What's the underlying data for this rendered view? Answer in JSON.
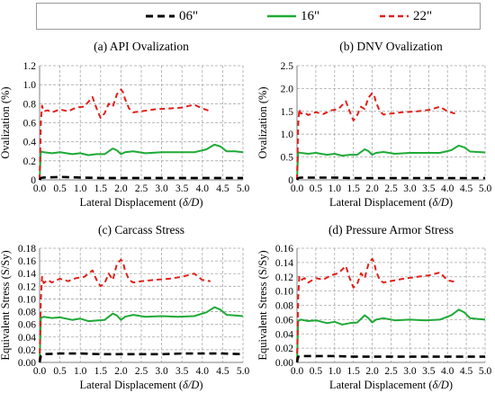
{
  "legend": [
    {
      "label": "06\"",
      "color": "#000000",
      "dash": "8,5"
    },
    {
      "label": "16\"",
      "color": "#1faa37",
      "dash": ""
    },
    {
      "label": "22\"",
      "color": "#e0211b",
      "dash": "6,4"
    }
  ],
  "chart_data": [
    {
      "type": "line",
      "title": "(a) API Ovalization",
      "xlabel": "Lateral Displacement (δ/D)",
      "ylabel": "Ovalization (%)",
      "xlim": [
        0,
        5
      ],
      "ylim": [
        0,
        1.2
      ],
      "xticks": [
        "0.0",
        "0.5",
        "1.0",
        "1.5",
        "2.0",
        "2.5",
        "3.0",
        "3.5",
        "4.0",
        "4.5",
        "5.0"
      ],
      "yticks": [
        "0",
        "0.2",
        "0.4",
        "0.6",
        "0.8",
        "1.0",
        "1.2"
      ],
      "grid": true,
      "series": [
        {
          "name": "06\"",
          "x": [
            0,
            0.03,
            0.1,
            0.5,
            1,
            1.5,
            2,
            2.5,
            3,
            3.5,
            4,
            4.5,
            5
          ],
          "y": [
            0,
            0.02,
            0.025,
            0.03,
            0.025,
            0.02,
            0.02,
            0.02,
            0.02,
            0.02,
            0.02,
            0.02,
            0.02
          ]
        },
        {
          "name": "16\"",
          "x": [
            0,
            0.03,
            0.1,
            0.3,
            0.5,
            0.8,
            1.0,
            1.2,
            1.4,
            1.6,
            1.8,
            1.9,
            2.0,
            2.1,
            2.3,
            2.6,
            3.0,
            3.4,
            3.8,
            4.1,
            4.3,
            4.45,
            4.6,
            4.8,
            5.0
          ],
          "y": [
            0,
            0.3,
            0.29,
            0.28,
            0.29,
            0.27,
            0.28,
            0.26,
            0.27,
            0.27,
            0.33,
            0.31,
            0.27,
            0.29,
            0.3,
            0.28,
            0.29,
            0.29,
            0.29,
            0.32,
            0.37,
            0.35,
            0.3,
            0.3,
            0.29
          ]
        },
        {
          "name": "22\"",
          "x": [
            0,
            0.03,
            0.06,
            0.1,
            0.2,
            0.3,
            0.5,
            0.7,
            0.9,
            1.1,
            1.3,
            1.4,
            1.5,
            1.6,
            1.7,
            1.8,
            1.9,
            2.0,
            2.05,
            2.1,
            2.2,
            2.3,
            2.5,
            2.8,
            3.2,
            3.5,
            3.8,
            4.0,
            4.2
          ],
          "y": [
            0,
            0.6,
            0.78,
            0.72,
            0.73,
            0.71,
            0.74,
            0.72,
            0.76,
            0.77,
            0.87,
            0.75,
            0.65,
            0.7,
            0.8,
            0.77,
            0.9,
            0.95,
            0.92,
            0.85,
            0.75,
            0.71,
            0.72,
            0.74,
            0.75,
            0.76,
            0.79,
            0.75,
            0.72
          ]
        }
      ]
    },
    {
      "type": "line",
      "title": "(b) DNV Ovalization",
      "xlabel": "Lateral Displacement (δ/D)",
      "ylabel": "Ovalization (%)",
      "xlim": [
        0,
        5
      ],
      "ylim": [
        0,
        2.5
      ],
      "xticks": [
        "0.0",
        "0.5",
        "1.0",
        "1.5",
        "2.0",
        "2.5",
        "3.0",
        "3.5",
        "4.0",
        "4.5",
        "5.0"
      ],
      "yticks": [
        "0",
        "0.5",
        "1.0",
        "1.5",
        "2.0",
        "2.5"
      ],
      "grid": true,
      "series": [
        {
          "name": "06\"",
          "x": [
            0,
            0.03,
            0.1,
            0.5,
            1,
            1.5,
            2,
            2.5,
            3,
            3.5,
            4,
            4.5,
            5
          ],
          "y": [
            0,
            0.04,
            0.05,
            0.05,
            0.05,
            0.04,
            0.04,
            0.04,
            0.04,
            0.04,
            0.04,
            0.04,
            0.04
          ]
        },
        {
          "name": "16\"",
          "x": [
            0,
            0.03,
            0.1,
            0.3,
            0.5,
            0.8,
            1.0,
            1.2,
            1.4,
            1.6,
            1.8,
            1.9,
            2.0,
            2.1,
            2.3,
            2.6,
            3.0,
            3.4,
            3.8,
            4.1,
            4.3,
            4.45,
            4.6,
            4.8,
            5.0
          ],
          "y": [
            0,
            0.6,
            0.59,
            0.57,
            0.59,
            0.55,
            0.57,
            0.53,
            0.55,
            0.55,
            0.67,
            0.63,
            0.55,
            0.59,
            0.61,
            0.57,
            0.59,
            0.59,
            0.59,
            0.65,
            0.75,
            0.71,
            0.62,
            0.61,
            0.6
          ]
        },
        {
          "name": "22\"",
          "x": [
            0,
            0.03,
            0.06,
            0.1,
            0.2,
            0.3,
            0.5,
            0.7,
            0.9,
            1.1,
            1.3,
            1.4,
            1.5,
            1.6,
            1.7,
            1.8,
            1.9,
            2.0,
            2.05,
            2.1,
            2.2,
            2.3,
            2.5,
            2.8,
            3.2,
            3.5,
            3.8,
            4.0,
            4.2
          ],
          "y": [
            0,
            1.2,
            1.55,
            1.45,
            1.47,
            1.42,
            1.48,
            1.44,
            1.52,
            1.55,
            1.72,
            1.5,
            1.3,
            1.42,
            1.6,
            1.55,
            1.8,
            1.9,
            1.85,
            1.7,
            1.5,
            1.43,
            1.45,
            1.48,
            1.5,
            1.53,
            1.6,
            1.5,
            1.45
          ]
        }
      ]
    },
    {
      "type": "line",
      "title": "(c) Carcass Stress",
      "xlabel": "Lateral Displacement (δ/D)",
      "ylabel": "Equivalent Stress (S/Sy)",
      "xlim": [
        0,
        5
      ],
      "ylim": [
        0,
        0.18
      ],
      "xticks": [
        "0.0",
        "0.5",
        "1.0",
        "1.5",
        "2.0",
        "2.5",
        "3.0",
        "3.5",
        "4.0",
        "4.5",
        "5.0"
      ],
      "yticks": [
        "0.00",
        "0.02",
        "0.04",
        "0.06",
        "0.08",
        "0.10",
        "0.12",
        "0.14",
        "0.16",
        "0.18"
      ],
      "grid": true,
      "series": [
        {
          "name": "06\"",
          "x": [
            0,
            0.03,
            0.1,
            0.5,
            1,
            1.5,
            2,
            2.5,
            3,
            3.5,
            4,
            4.5,
            5
          ],
          "y": [
            0,
            0.01,
            0.013,
            0.014,
            0.014,
            0.013,
            0.013,
            0.013,
            0.013,
            0.014,
            0.014,
            0.014,
            0.013
          ]
        },
        {
          "name": "16\"",
          "x": [
            0,
            0.03,
            0.1,
            0.3,
            0.5,
            0.8,
            1.0,
            1.2,
            1.4,
            1.6,
            1.8,
            1.9,
            2.0,
            2.1,
            2.3,
            2.6,
            3.0,
            3.4,
            3.8,
            4.1,
            4.3,
            4.45,
            4.6,
            4.8,
            5.0
          ],
          "y": [
            0,
            0.07,
            0.072,
            0.07,
            0.071,
            0.067,
            0.069,
            0.065,
            0.066,
            0.067,
            0.077,
            0.074,
            0.067,
            0.072,
            0.075,
            0.072,
            0.073,
            0.072,
            0.073,
            0.079,
            0.087,
            0.083,
            0.075,
            0.074,
            0.073
          ]
        },
        {
          "name": "22\"",
          "x": [
            0,
            0.03,
            0.06,
            0.1,
            0.2,
            0.3,
            0.5,
            0.7,
            0.9,
            1.1,
            1.3,
            1.4,
            1.5,
            1.6,
            1.7,
            1.8,
            1.9,
            2.0,
            2.05,
            2.1,
            2.2,
            2.3,
            2.5,
            2.8,
            3.2,
            3.5,
            3.8,
            4.0,
            4.2
          ],
          "y": [
            0,
            0.1,
            0.135,
            0.125,
            0.13,
            0.126,
            0.132,
            0.128,
            0.133,
            0.135,
            0.145,
            0.13,
            0.12,
            0.125,
            0.14,
            0.13,
            0.155,
            0.162,
            0.158,
            0.145,
            0.13,
            0.126,
            0.128,
            0.13,
            0.132,
            0.135,
            0.14,
            0.13,
            0.128
          ]
        }
      ]
    },
    {
      "type": "line",
      "title": "(d) Pressure Armor Stress",
      "xlabel": "Lateral Displacement (δ/D)",
      "ylabel": "Equivalent Stress (S/Sy)",
      "xlim": [
        0,
        5
      ],
      "ylim": [
        0,
        0.16
      ],
      "xticks": [
        "0.0",
        "0.5",
        "1.0",
        "1.5",
        "2.0",
        "2.5",
        "3.0",
        "3.5",
        "4.0",
        "4.5",
        "5.0"
      ],
      "yticks": [
        "0.00",
        "0.02",
        "0.04",
        "0.06",
        "0.08",
        "0.10",
        "0.12",
        "0.14",
        "0.16"
      ],
      "grid": true,
      "series": [
        {
          "name": "06\"",
          "x": [
            0,
            0.03,
            0.1,
            0.5,
            1,
            1.5,
            2,
            2.5,
            3,
            3.5,
            4,
            4.5,
            5
          ],
          "y": [
            0,
            0.008,
            0.009,
            0.009,
            0.009,
            0.008,
            0.008,
            0.008,
            0.008,
            0.008,
            0.008,
            0.008,
            0.008
          ]
        },
        {
          "name": "16\"",
          "x": [
            0,
            0.03,
            0.1,
            0.3,
            0.5,
            0.8,
            1.0,
            1.2,
            1.4,
            1.6,
            1.8,
            1.9,
            2.0,
            2.1,
            2.3,
            2.6,
            3.0,
            3.4,
            3.8,
            4.1,
            4.3,
            4.45,
            4.6,
            4.8,
            5.0
          ],
          "y": [
            0,
            0.058,
            0.06,
            0.058,
            0.059,
            0.055,
            0.057,
            0.053,
            0.055,
            0.056,
            0.066,
            0.062,
            0.056,
            0.06,
            0.062,
            0.059,
            0.06,
            0.059,
            0.06,
            0.066,
            0.074,
            0.07,
            0.062,
            0.061,
            0.06
          ]
        },
        {
          "name": "22\"",
          "x": [
            0,
            0.03,
            0.06,
            0.1,
            0.2,
            0.3,
            0.5,
            0.7,
            0.9,
            1.1,
            1.3,
            1.4,
            1.5,
            1.6,
            1.7,
            1.8,
            1.9,
            2.0,
            2.05,
            2.1,
            2.2,
            2.3,
            2.5,
            2.8,
            3.2,
            3.5,
            3.8,
            4.0,
            4.2
          ],
          "y": [
            0,
            0.09,
            0.12,
            0.115,
            0.118,
            0.112,
            0.118,
            0.116,
            0.122,
            0.125,
            0.135,
            0.118,
            0.105,
            0.11,
            0.125,
            0.118,
            0.138,
            0.145,
            0.14,
            0.128,
            0.115,
            0.112,
            0.114,
            0.117,
            0.12,
            0.122,
            0.126,
            0.115,
            0.113
          ]
        }
      ]
    }
  ]
}
